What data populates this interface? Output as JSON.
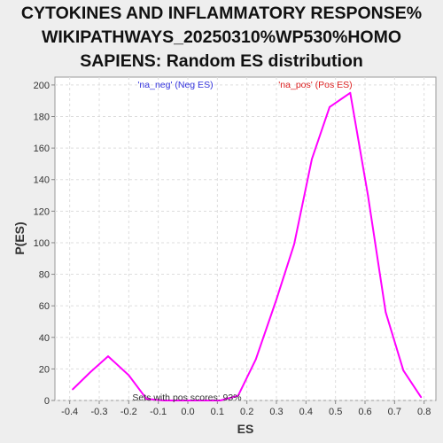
{
  "chart_data": {
    "type": "line",
    "title_lines": [
      "CYTOKINES AND INFLAMMATORY RESPONSE%",
      "WIKIPATHWAYS_20250310%WP530%HOMO",
      "SAPIENS: Random ES distribution"
    ],
    "xlabel": "ES",
    "ylabel": "P(ES)",
    "xlim": [
      -0.45,
      0.84
    ],
    "ylim": [
      0,
      205
    ],
    "xticks": [
      -0.4,
      -0.3,
      -0.2,
      -0.1,
      0.0,
      0.1,
      0.2,
      0.3,
      0.4,
      0.5,
      0.6,
      0.7,
      0.8
    ],
    "xtick_labels": [
      "-0.4",
      "-0.3",
      "-0.2",
      "-0.1",
      "0.0",
      "0.1",
      "0.2",
      "0.3",
      "0.4",
      "0.5",
      "0.6",
      "0.7",
      "0.8"
    ],
    "yticks": [
      0,
      20,
      40,
      60,
      80,
      100,
      120,
      140,
      160,
      180,
      200
    ],
    "ytick_labels": [
      "0",
      "20",
      "40",
      "60",
      "80",
      "100",
      "120",
      "140",
      "160",
      "180",
      "200"
    ],
    "grid": true,
    "series": [
      {
        "color": "#ff00ff",
        "x": [
          -0.39,
          -0.33,
          -0.27,
          -0.2,
          -0.14,
          -0.08,
          -0.01,
          0.05,
          0.11,
          0.17,
          0.23,
          0.3,
          0.36,
          0.42,
          0.48,
          0.55,
          0.61,
          0.67,
          0.73,
          0.79
        ],
        "y": [
          7,
          18,
          28,
          16,
          1,
          0,
          0,
          0,
          0,
          3,
          26,
          64,
          99,
          153,
          186,
          195,
          130,
          56,
          19,
          2
        ]
      }
    ],
    "annotations": [
      {
        "text": "'na_neg' (Neg ES)",
        "color": "#3333dd",
        "position": "top-left"
      },
      {
        "text": "'na_pos' (Pos ES)",
        "color": "#dd2222",
        "position": "top-right"
      },
      {
        "text": "Sets with pos scores: 93%",
        "color": "#333333",
        "position": "bottom"
      }
    ]
  }
}
